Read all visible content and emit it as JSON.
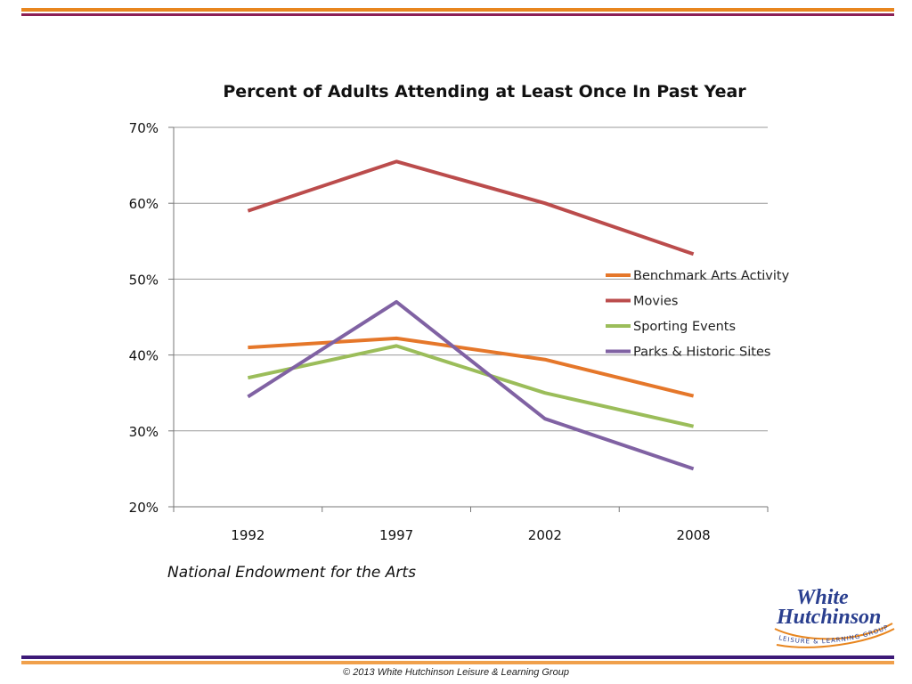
{
  "colors": {
    "top_bar_orange": "#e8861f",
    "top_bar_maroon": "#8b2055",
    "bottom_bar_purple": "#3d1a78",
    "bottom_bar_orange": "#f0a04b",
    "logo_blue": "#2a3f8f",
    "logo_orange": "#e8861f"
  },
  "source_note": "National Endowment for the Arts",
  "footer": "© 2013 White Hutchinson Leisure & Learning Group",
  "logo": {
    "line1": "White",
    "line2": "Hutchinson",
    "tagline": "LEISURE & LEARNING GROUP"
  },
  "chart_data": {
    "type": "line",
    "title": "Percent of Adults Attending at Least Once In Past Year",
    "xlabel": "",
    "ylabel": "",
    "categories": [
      "1992",
      "1997",
      "2002",
      "2008"
    ],
    "ylim": [
      20,
      70
    ],
    "yticks": [
      20,
      30,
      40,
      50,
      60,
      70
    ],
    "ytick_labels": [
      "20%",
      "30%",
      "40%",
      "50%",
      "60%",
      "70%"
    ],
    "grid": true,
    "legend_position": "right",
    "series": [
      {
        "name": "Benchmark Arts Activity",
        "color": "#e5772a",
        "values": [
          41.0,
          42.2,
          39.4,
          34.6
        ]
      },
      {
        "name": "Movies",
        "color": "#bb4c4c",
        "values": [
          59.0,
          65.5,
          60.0,
          53.3
        ]
      },
      {
        "name": "Sporting Events",
        "color": "#9bbd5a",
        "values": [
          37.0,
          41.2,
          35.0,
          30.6
        ]
      },
      {
        "name": "Parks & Historic Sites",
        "color": "#8062a3",
        "values": [
          34.5,
          47.0,
          31.6,
          25.0
        ]
      }
    ]
  }
}
